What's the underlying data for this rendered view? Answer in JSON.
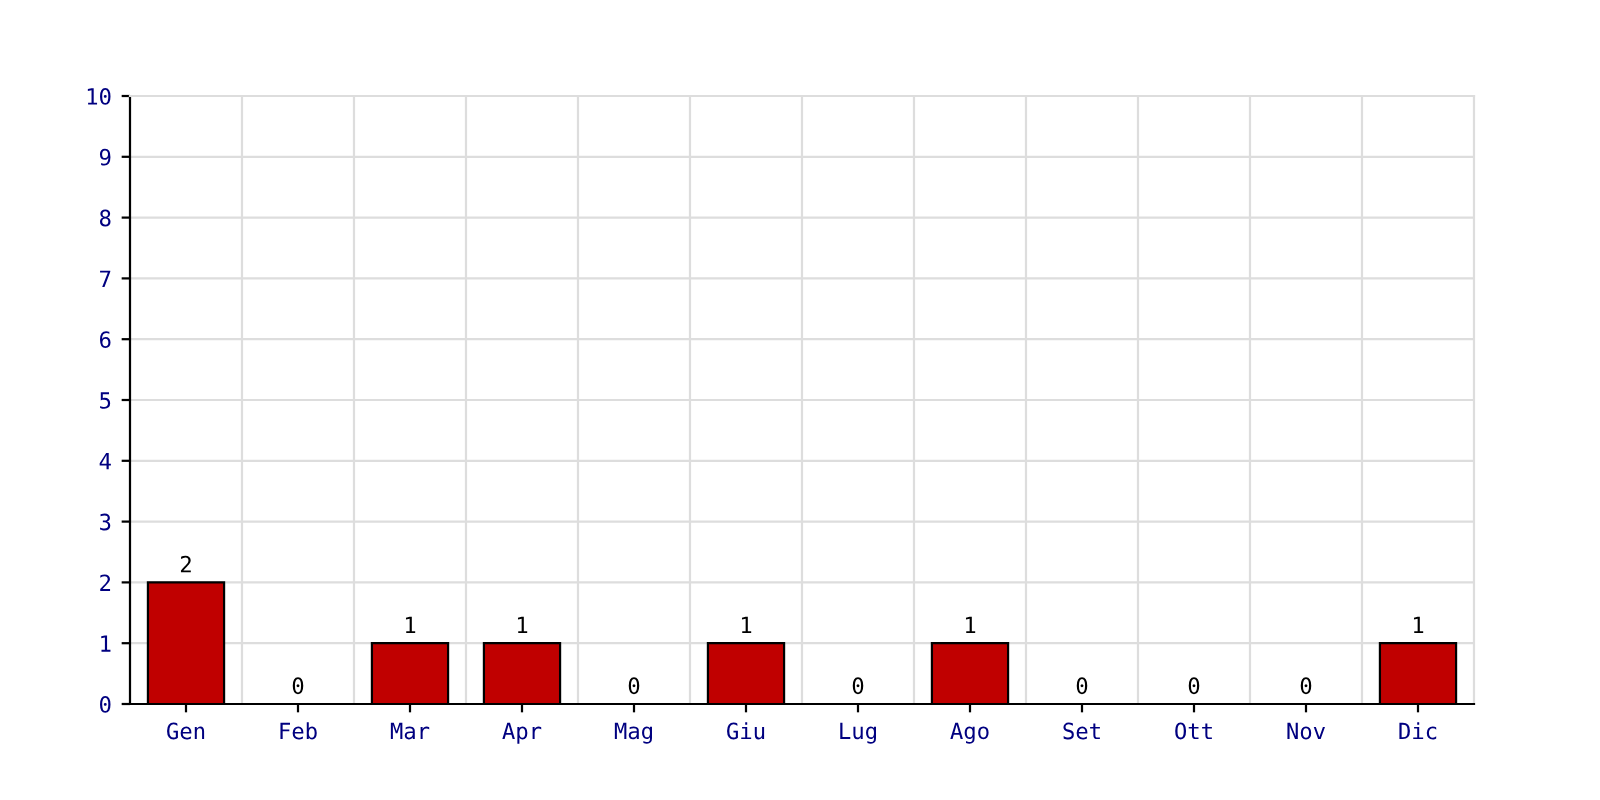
{
  "chart_data": {
    "type": "bar",
    "categories": [
      "Gen",
      "Feb",
      "Mar",
      "Apr",
      "Mag",
      "Giu",
      "Lug",
      "Ago",
      "Set",
      "Ott",
      "Nov",
      "Dic"
    ],
    "values": [
      2,
      0,
      1,
      1,
      0,
      1,
      0,
      1,
      0,
      0,
      0,
      1
    ],
    "color": "#c00000",
    "ylim": [
      0,
      10
    ],
    "yticks": [
      0,
      1,
      2,
      3,
      4,
      5,
      6,
      7,
      8,
      9,
      10
    ],
    "grid": true,
    "data_labels": true
  }
}
